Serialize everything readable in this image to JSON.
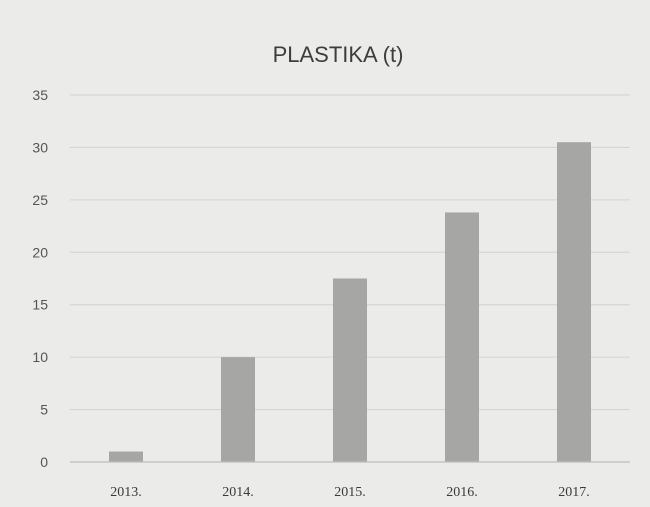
{
  "chart_data": {
    "type": "bar",
    "title": "PLASTIKA (t)",
    "xlabel": "",
    "ylabel": "",
    "categories": [
      "2013.",
      "2014.",
      "2015.",
      "2016.",
      "2017."
    ],
    "values": [
      1,
      10,
      17.5,
      23.8,
      30.5
    ],
    "ylim": [
      0,
      35
    ],
    "yticks": [
      0,
      5,
      10,
      15,
      20,
      25,
      30,
      35
    ],
    "grid": true,
    "legend": "none",
    "colors": {
      "bar": "#a6a6a4",
      "background": "#ebebea"
    }
  }
}
